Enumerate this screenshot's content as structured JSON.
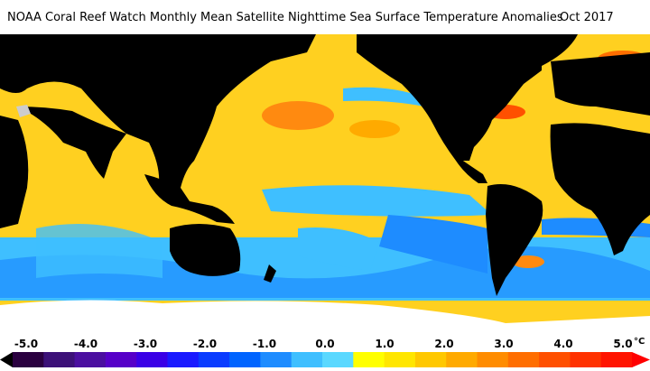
{
  "title": "NOAA Coral Reef Watch Monthly Mean Satellite Nighttime Sea Surface Temperature Anomalies",
  "date": "Oct 2017",
  "colorbar": {
    "tick_labels": [
      "-5.0",
      "-4.0",
      "-3.0",
      "-2.0",
      "-1.0",
      "0.0",
      "1.0",
      "2.0",
      "3.0",
      "4.0",
      "5.0"
    ],
    "unit": "°C",
    "min": -5.0,
    "max": 5.0,
    "colors": [
      "#000000",
      "#2a0040",
      "#3c1178",
      "#4b0fa0",
      "#5600c8",
      "#3a00e6",
      "#1a1aff",
      "#0a3cff",
      "#0064ff",
      "#1e8cff",
      "#3fbfff",
      "#5ad8ff",
      "#ffff00",
      "#ffe600",
      "#ffc800",
      "#ffaa00",
      "#ff8c00",
      "#ff6e00",
      "#ff5000",
      "#ff3200",
      "#ff1400",
      "#ff0000"
    ]
  },
  "map": {
    "ocean_colors": {
      "warm": "#ffd020",
      "hot": "#ff8a10",
      "neutral": "#ffff30",
      "cool": "#3fbfff",
      "cold": "#1e6cff",
      "land": "#000000",
      "ice": "#ffffff"
    }
  }
}
